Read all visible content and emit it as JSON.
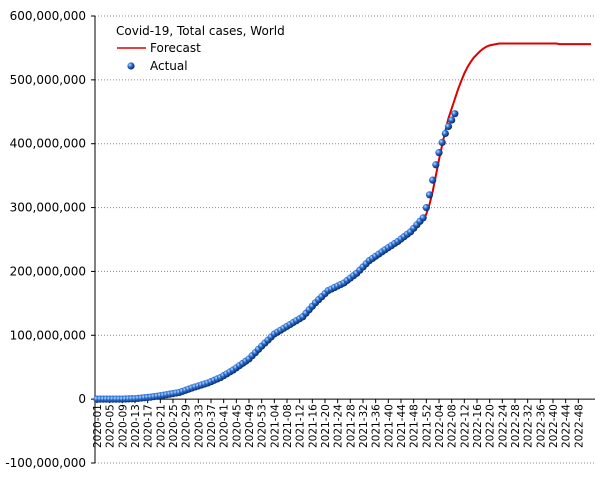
{
  "chart_data": {
    "type": "line",
    "title": "Covid-19, Total cases, World",
    "categories": [
      "2020-01",
      null,
      null,
      null,
      "2020-05",
      null,
      null,
      null,
      "2020-09",
      null,
      null,
      null,
      "2020-13",
      null,
      null,
      null,
      "2020-17",
      null,
      null,
      null,
      "2020-21",
      null,
      null,
      null,
      "2020-25",
      null,
      null,
      null,
      "2020-29",
      null,
      null,
      null,
      "2020-33",
      null,
      null,
      null,
      "2020-37",
      null,
      null,
      null,
      "2020-41",
      null,
      null,
      null,
      "2020-45",
      null,
      null,
      null,
      "2020-49",
      null,
      null,
      null,
      "2020-53",
      null,
      null,
      null,
      "2021-04",
      null,
      null,
      null,
      "2021-08",
      null,
      null,
      null,
      "2021-12",
      null,
      null,
      null,
      "2021-16",
      null,
      null,
      null,
      "2021-20",
      null,
      null,
      null,
      "2021-24",
      null,
      null,
      null,
      "2021-28",
      null,
      null,
      null,
      "2021-32",
      null,
      null,
      null,
      "2021-36",
      null,
      null,
      null,
      "2021-40",
      null,
      null,
      null,
      "2021-44",
      null,
      null,
      null,
      "2021-48",
      null,
      null,
      null,
      "2021-52",
      null,
      null,
      null,
      "2022-04",
      null,
      null,
      null,
      "2022-08",
      null,
      null,
      null,
      "2022-12",
      null,
      null,
      null,
      "2022-16",
      null,
      null,
      null,
      "2022-20",
      null,
      null,
      null,
      "2022-24",
      null,
      null,
      null,
      "2022-28",
      null,
      null,
      null,
      "2022-32",
      null,
      null,
      null,
      "2022-36",
      null,
      null,
      null,
      "2022-40",
      null,
      null,
      null,
      "2022-44",
      null,
      null,
      null,
      "2022-48",
      null,
      null,
      null,
      null
    ],
    "series": [
      {
        "name": "Forecast",
        "color": "#dd0000",
        "style": "line",
        "values": [
          -2000000.0,
          -2000000.0,
          -2000000.0,
          -1800000.0,
          -1600000.0,
          -1400000.0,
          -1200000.0,
          -1000000.0,
          -800000.0,
          -600000.0,
          -400000.0,
          -200000.0,
          0,
          500000.0,
          1000000.0,
          1500000.0,
          4700000.0,
          5200000.0,
          5900000.0,
          6700000.0,
          7400000.0,
          8100000.0,
          9000000.0,
          9800000.0,
          10700000.0,
          11500000.0,
          12400000.0,
          14200000.0,
          15900000.0,
          17700000.0,
          19500000.0,
          21100000.0,
          22600000.0,
          24200000.0,
          25700000.0,
          27300000.0,
          29400000.0,
          31600000.0,
          33700000.0,
          35800000.0,
          38800000.0,
          41700000.0,
          44700000.0,
          47600000.0,
          51100000.0,
          54600000.0,
          58000000.0,
          61500000.0,
          65000000.0,
          70000000.0,
          75000000.0,
          80000000.0,
          85000000.0,
          89800000.0,
          94000000.0,
          98000000.0,
          102000000.0,
          105000000.0,
          108000000.0,
          111000000.0,
          114000000.0,
          117000000.0,
          120000000.0,
          123000000.0,
          126000000.0,
          129000000.0,
          134500000.0,
          140000000.0,
          145500000.0,
          151000000.0,
          155800000.0,
          160500000.0,
          165300000.0,
          170000000.0,
          172400000.0,
          174800000.0,
          177200000.0,
          179600000.0,
          182000000.0,
          185800000.0,
          189500000.0,
          193300000.0,
          197000000.0,
          202000000.0,
          207000000.0,
          212000000.0,
          217000000.0,
          220400000.0,
          223800000.0,
          227200000.0,
          230600000.0,
          234000000.0,
          237300000.0,
          240500000.0,
          243800000.0,
          247000000.0,
          250800000.0,
          254500000.0,
          258300000.0,
          262000000.0,
          267500000.0,
          273000000.0,
          278500000.0,
          280000000.0,
          290000000.0,
          305000000.0,
          325000000.0,
          350000000.0,
          375000000.0,
          398000000.0,
          420000000.0,
          440000000.0,
          455000000.0,
          470000000.0,
          485000000.0,
          498000000.0,
          510000000.0,
          520000000.0,
          528000000.0,
          535000000.0,
          540000000.0,
          545000000.0,
          549000000.0,
          552000000.0,
          554000000.0,
          555000000.0,
          556000000.0,
          557000000.0,
          557000000.0,
          557000000.0,
          557000000.0,
          557000000.0,
          557000000.0,
          557000000.0,
          557000000.0,
          557000000.0,
          557000000.0,
          557000000.0,
          557000000.0,
          557000000.0,
          557000000.0,
          557000000.0,
          557000000.0,
          557000000.0,
          557000000.0,
          557000000.0,
          556000000.0,
          556000000.0,
          556000000.0,
          556000000.0,
          556000000.0,
          556000000.0,
          556000000.0,
          556000000.0,
          556000000.0,
          556000000.0,
          556000000.0
        ]
      },
      {
        "name": "Actual",
        "color": "#2a6fd6",
        "style": "markers",
        "values": [
          0,
          10000.0,
          20000.0,
          30000.0,
          40000.0,
          50000.0,
          60000.0,
          70000.0,
          80000.0,
          250000.0,
          420000.0,
          580000.0,
          750000.0,
          1240000.0,
          1730000.0,
          2220000.0,
          2710000.0,
          3200000.0,
          3930000.0,
          4650000.0,
          5380000.0,
          6100000.0,
          6960000.0,
          7820000.0,
          8680000.0,
          9540000.0,
          10400000.0,
          12200000.0,
          13900000.0,
          15700000.0,
          17500000.0,
          19100000.0,
          20600000.0,
          22200000.0,
          23700000.0,
          25300000.0,
          27400000.0,
          29600000.0,
          31700000.0,
          33800000.0,
          36800000.0,
          39700000.0,
          42700000.0,
          45600000.0,
          49100000.0,
          52600000.0,
          56000000.0,
          59500000.0,
          63000000.0,
          68000000.0,
          73000000.0,
          78000000.0,
          83000000.0,
          87800000.0,
          92500000.0,
          97300000.0,
          102000000.0,
          105000000.0,
          108000000.0,
          111000000.0,
          114000000.0,
          117000000.0,
          120000000.0,
          123000000.0,
          126000000.0,
          129000000.0,
          134500000.0,
          140000000.0,
          145500000.0,
          151000000.0,
          155800000.0,
          160500000.0,
          165300000.0,
          170000000.0,
          172400000.0,
          174800000.0,
          177200000.0,
          179600000.0,
          182000000.0,
          185800000.0,
          189500000.0,
          193300000.0,
          197000000.0,
          202000000.0,
          207000000.0,
          212000000.0,
          217000000.0,
          220400000.0,
          223800000.0,
          227200000.0,
          230600000.0,
          234000000.0,
          237300000.0,
          240500000.0,
          243800000.0,
          247000000.0,
          250800000.0,
          254500000.0,
          258300000.0,
          262000000.0,
          267500000.0,
          273000000.0,
          278500000.0,
          284000000.0,
          300000000.0,
          320000000.0,
          343000000.0,
          367000000.0,
          386000000.0,
          402000000.0,
          416000000.0,
          427000000.0,
          437000000.0,
          447000000.0,
          null,
          null,
          null,
          null,
          null,
          null,
          null,
          null,
          null,
          null,
          null,
          null,
          null,
          null,
          null,
          null,
          null,
          null,
          null,
          null,
          null,
          null,
          null,
          null,
          null,
          null,
          null,
          null,
          null,
          null,
          null,
          null,
          null,
          null,
          null,
          null,
          null,
          null,
          null,
          null,
          null,
          null,
          null
        ]
      }
    ],
    "ylim": [
      -100000000,
      600000000
    ],
    "yticks": [
      {
        "value": -100000000,
        "label": "-100,000,000"
      },
      0,
      {
        "value": 100000000,
        "label": "100,000,000"
      },
      {
        "value": 200000000,
        "label": "200,000,000"
      },
      {
        "value": 300000000,
        "label": "300,000,000"
      },
      {
        "value": 400000000,
        "label": "400,000,000"
      },
      {
        "value": 500000000,
        "label": "500,000,000"
      },
      {
        "value": 600000000,
        "label": "600,000,000"
      }
    ],
    "grid": true
  }
}
